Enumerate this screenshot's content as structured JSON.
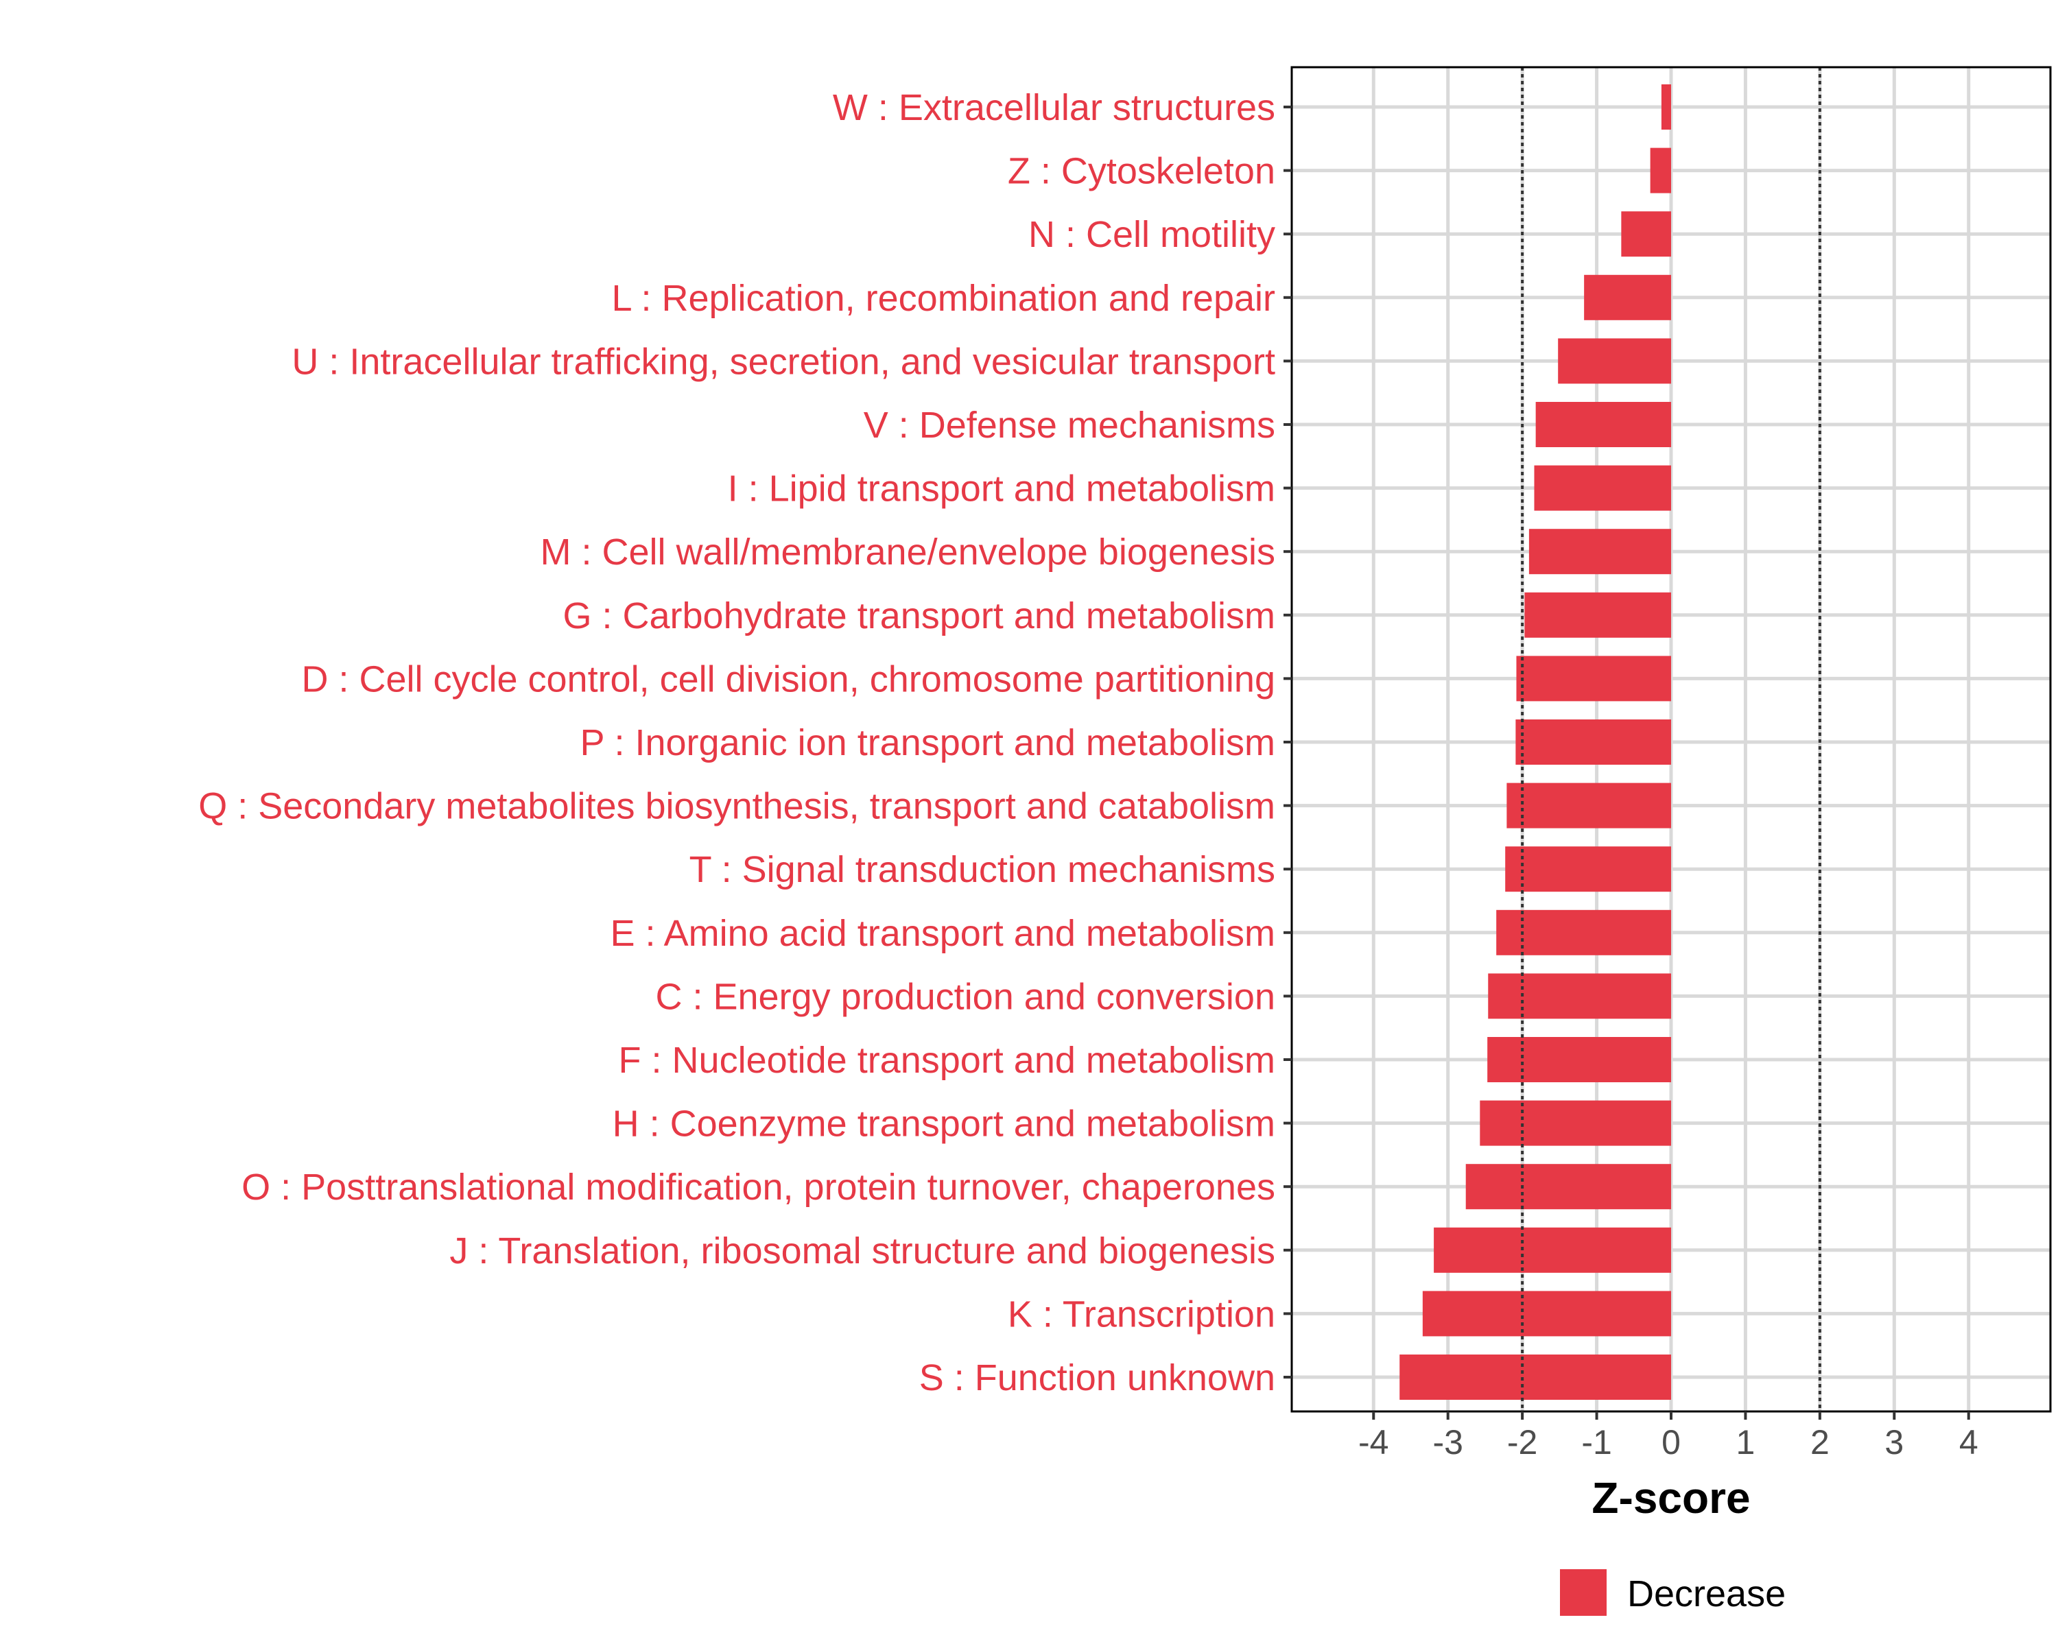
{
  "chart_data": {
    "type": "bar",
    "orientation": "horizontal",
    "xlabel": "Z-score",
    "xlim": [
      -5.1,
      5.1
    ],
    "xticks": [
      -4,
      -3,
      -2,
      -1,
      0,
      1,
      2,
      3,
      4
    ],
    "xtick_labels": [
      "-4",
      "-3",
      "-2",
      "-1",
      "0",
      "1",
      "2",
      "3",
      "4"
    ],
    "reference_lines": [
      -2,
      2
    ],
    "grid": true,
    "categories": [
      "W : Extracellular structures",
      "Z : Cytoskeleton",
      "N : Cell motility",
      "L : Replication, recombination and repair",
      "U : Intracellular trafficking, secretion, and vesicular transport",
      "V : Defense mechanisms",
      "I : Lipid transport and metabolism",
      "M : Cell wall/membrane/envelope biogenesis",
      "G : Carbohydrate transport and metabolism",
      "D : Cell cycle control, cell division, chromosome partitioning",
      "P : Inorganic ion transport and metabolism",
      "Q : Secondary metabolites biosynthesis, transport and catabolism",
      "T : Signal transduction mechanisms",
      "E : Amino acid transport and metabolism",
      "C : Energy production and conversion",
      "F : Nucleotide transport and metabolism",
      "H : Coenzyme transport and metabolism",
      "O : Posttranslational modification, protein turnover, chaperones",
      "J : Translation, ribosomal structure and biogenesis",
      "K : Transcription",
      "S : Function unknown"
    ],
    "series": [
      {
        "name": "Decrease",
        "color": "#e63946",
        "values": [
          -0.13,
          -0.28,
          -0.67,
          -1.17,
          -1.52,
          -1.82,
          -1.84,
          -1.91,
          -1.97,
          -2.08,
          -2.09,
          -2.21,
          -2.23,
          -2.35,
          -2.46,
          -2.47,
          -2.57,
          -2.76,
          -3.19,
          -3.34,
          -3.65
        ]
      }
    ],
    "legend": {
      "position": "bottom",
      "entries": [
        "Decrease"
      ]
    }
  }
}
